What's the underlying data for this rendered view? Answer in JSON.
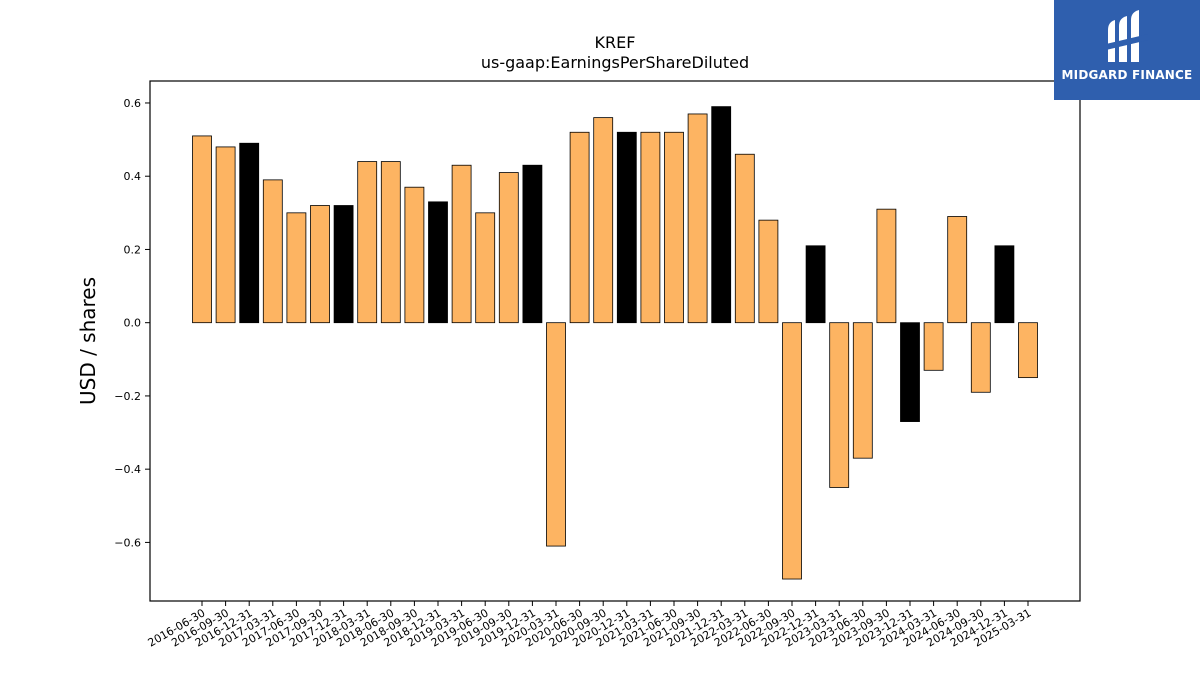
{
  "chart_data": {
    "type": "bar",
    "title": "KREF",
    "subtitle": "us-gaap:EarningsPerShareDiluted",
    "xlabel": "",
    "ylabel": "USD / shares",
    "ylim": [
      -0.76,
      0.66
    ],
    "yticks": [
      -0.6,
      -0.4,
      -0.2,
      0.0,
      0.2,
      0.4,
      0.6
    ],
    "ytick_labels": [
      "−0.6",
      "−0.4",
      "−0.2",
      "0.0",
      "0.2",
      "0.4",
      "0.6"
    ],
    "grid": false,
    "colors": {
      "quarterly": "#fdb462",
      "annual": "#000000",
      "edge": "#000000"
    },
    "categories": [
      "2016-06-30",
      "2016-09-30",
      "2016-12-31",
      "2017-03-31",
      "2017-06-30",
      "2017-09-30",
      "2017-12-31",
      "2018-03-31",
      "2018-06-30",
      "2018-09-30",
      "2018-12-31",
      "2019-03-31",
      "2019-06-30",
      "2019-09-30",
      "2019-12-31",
      "2020-03-31",
      "2020-06-30",
      "2020-09-30",
      "2020-12-31",
      "2021-03-31",
      "2021-06-30",
      "2021-09-30",
      "2021-12-31",
      "2022-03-31",
      "2022-06-30",
      "2022-09-30",
      "2022-12-31",
      "2023-03-31",
      "2023-06-30",
      "2023-09-30",
      "2023-12-31",
      "2024-03-31",
      "2024-06-30",
      "2024-09-30",
      "2024-12-31",
      "2025-03-31"
    ],
    "values": [
      0.51,
      0.48,
      0.49,
      0.39,
      0.3,
      0.32,
      0.32,
      0.44,
      0.44,
      0.37,
      0.33,
      0.43,
      0.3,
      0.41,
      0.43,
      -0.61,
      0.52,
      0.56,
      0.52,
      0.52,
      0.52,
      0.57,
      0.59,
      0.46,
      0.28,
      -0.7,
      0.21,
      -0.45,
      -0.37,
      0.31,
      -0.27,
      -0.13,
      0.29,
      -0.19,
      0.21,
      -0.15
    ],
    "highlight": [
      false,
      false,
      true,
      false,
      false,
      false,
      true,
      false,
      false,
      false,
      true,
      false,
      false,
      false,
      true,
      false,
      false,
      false,
      true,
      false,
      false,
      false,
      true,
      false,
      false,
      false,
      true,
      false,
      false,
      false,
      true,
      false,
      false,
      false,
      true,
      false
    ]
  },
  "logo": {
    "text": "MIDGARD FINANCE",
    "icon": "midgard-logo-icon"
  }
}
